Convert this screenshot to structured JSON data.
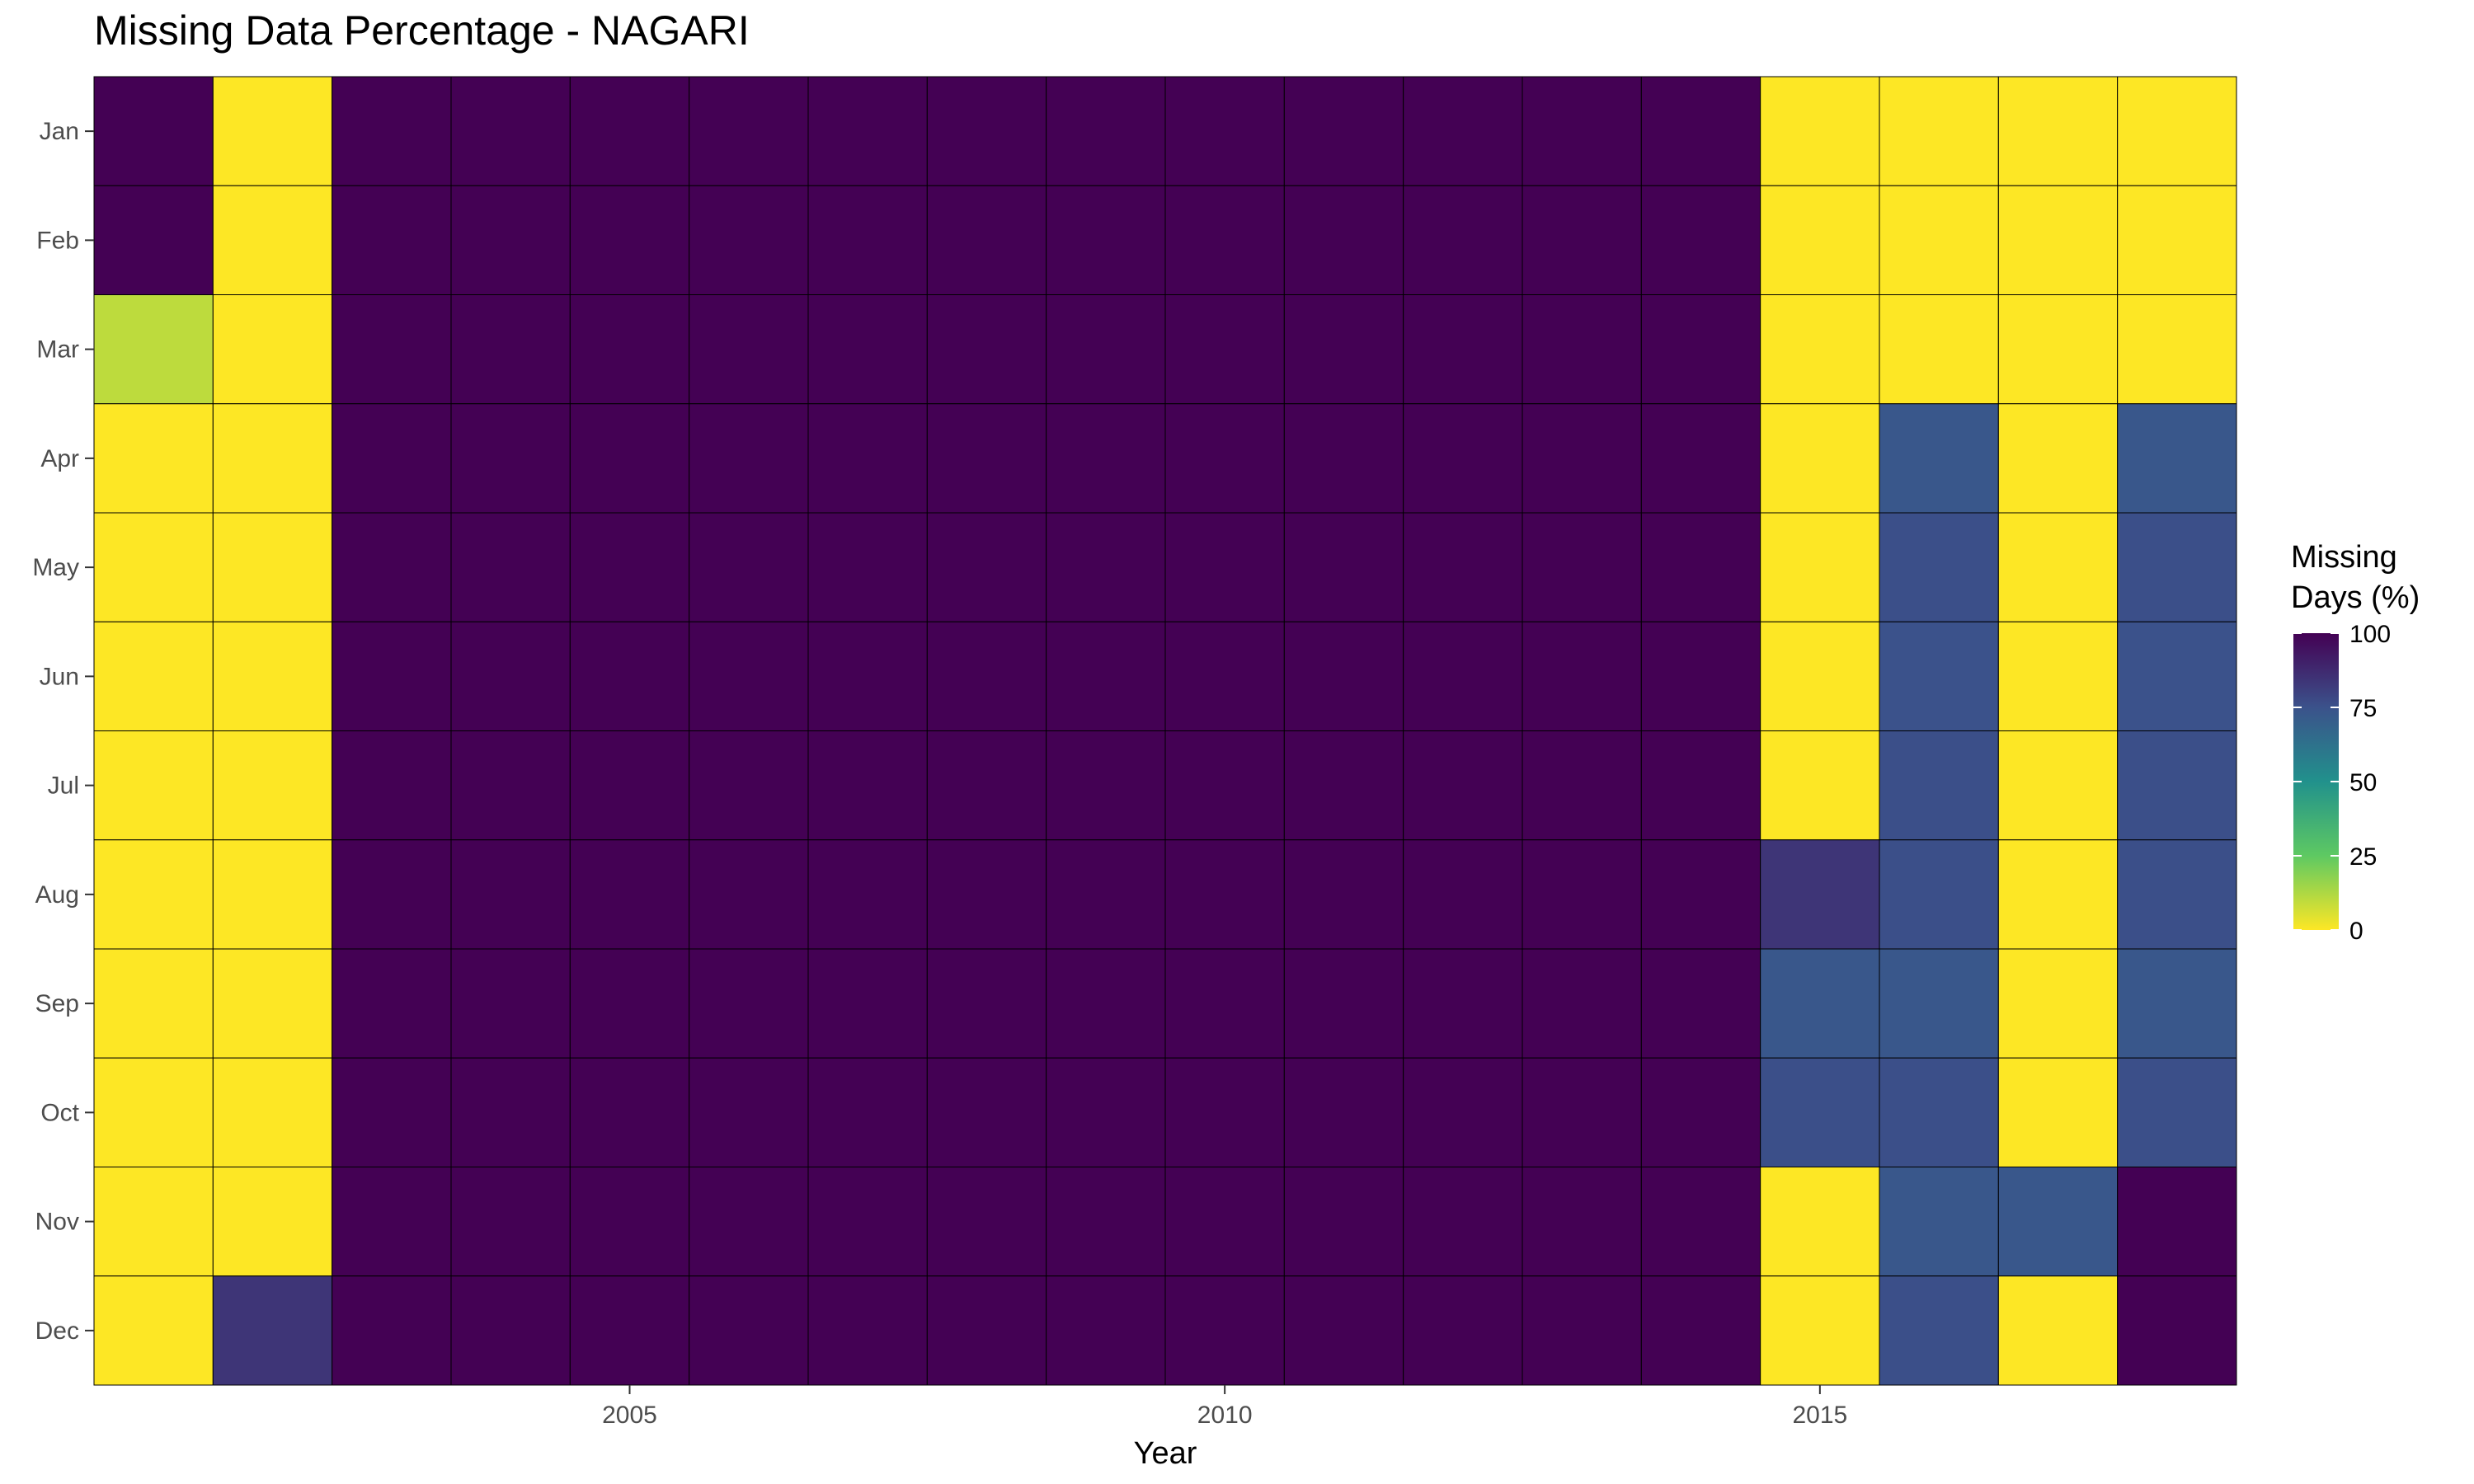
{
  "chart_data": {
    "type": "heatmap",
    "title": "Missing Data Percentage - NAGARI",
    "xlabel": "Year",
    "ylabel": "",
    "x": [
      2001,
      2002,
      2003,
      2004,
      2005,
      2006,
      2007,
      2008,
      2009,
      2010,
      2011,
      2012,
      2013,
      2014,
      2015,
      2016,
      2017,
      2018
    ],
    "x_ticks": [
      2005,
      2010,
      2015
    ],
    "x_tick_labels": [
      "2005",
      "2010",
      "2015"
    ],
    "y": [
      "Jan",
      "Feb",
      "Mar",
      "Apr",
      "May",
      "Jun",
      "Jul",
      "Aug",
      "Sep",
      "Oct",
      "Nov",
      "Dec"
    ],
    "values": [
      [
        100,
        0,
        100,
        100,
        100,
        100,
        100,
        100,
        100,
        100,
        100,
        100,
        100,
        100,
        0,
        0,
        0,
        0
      ],
      [
        100,
        0,
        100,
        100,
        100,
        100,
        100,
        100,
        100,
        100,
        100,
        100,
        100,
        100,
        0,
        0,
        0,
        0
      ],
      [
        10,
        0,
        100,
        100,
        100,
        100,
        100,
        100,
        100,
        100,
        100,
        100,
        100,
        100,
        0,
        0,
        0,
        0
      ],
      [
        0,
        0,
        100,
        100,
        100,
        100,
        100,
        100,
        100,
        100,
        100,
        100,
        100,
        100,
        0,
        73,
        0,
        73
      ],
      [
        0,
        0,
        100,
        100,
        100,
        100,
        100,
        100,
        100,
        100,
        100,
        100,
        100,
        100,
        0,
        76,
        0,
        76
      ],
      [
        0,
        0,
        100,
        100,
        100,
        100,
        100,
        100,
        100,
        100,
        100,
        100,
        100,
        100,
        0,
        75,
        0,
        75
      ],
      [
        0,
        0,
        100,
        100,
        100,
        100,
        100,
        100,
        100,
        100,
        100,
        100,
        100,
        100,
        0,
        76,
        0,
        76
      ],
      [
        0,
        0,
        100,
        100,
        100,
        100,
        100,
        100,
        100,
        100,
        100,
        100,
        100,
        100,
        84,
        76,
        0,
        76
      ],
      [
        0,
        0,
        100,
        100,
        100,
        100,
        100,
        100,
        100,
        100,
        100,
        100,
        100,
        100,
        73,
        73,
        0,
        73
      ],
      [
        0,
        0,
        100,
        100,
        100,
        100,
        100,
        100,
        100,
        100,
        100,
        100,
        100,
        100,
        76,
        76,
        0,
        76
      ],
      [
        0,
        0,
        100,
        100,
        100,
        100,
        100,
        100,
        100,
        100,
        100,
        100,
        100,
        100,
        0,
        73,
        73,
        100
      ],
      [
        0,
        84,
        100,
        100,
        100,
        100,
        100,
        100,
        100,
        100,
        100,
        100,
        100,
        100,
        0,
        76,
        0,
        100
      ]
    ],
    "legend": {
      "title": "Missing\nDays (%)",
      "position": "right",
      "range": [
        0,
        100
      ],
      "ticks": [
        0,
        25,
        50,
        75,
        100
      ],
      "tick_labels": [
        "0",
        "25",
        "50",
        "75",
        "100"
      ],
      "scale": "viridis (reversed: 0 = yellow, 100 = dark purple)"
    },
    "grid": false,
    "colors": {
      "v0": "#fde725",
      "v25": "#5ec962",
      "v50": "#21918c",
      "v75": "#3b528b",
      "v100": "#440154",
      "tile_border": "#000000"
    }
  }
}
